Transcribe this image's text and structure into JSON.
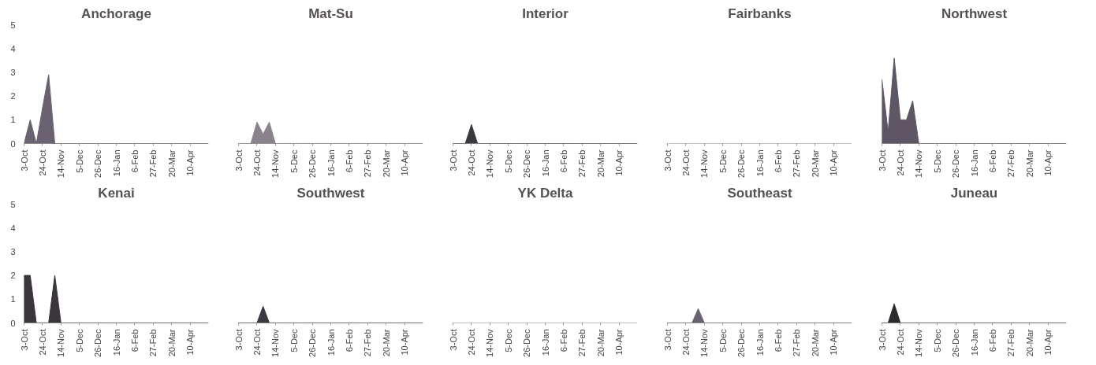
{
  "chart_data": [
    {
      "type": "area",
      "title": "Anchorage",
      "color": "#6a6270",
      "values": [
        0,
        1,
        0,
        1.5,
        2.9,
        0,
        0,
        0,
        0,
        0,
        0,
        0,
        0,
        0,
        0,
        0,
        0,
        0,
        0,
        0,
        0,
        0,
        0,
        0,
        0,
        0,
        0,
        0,
        0,
        0,
        0
      ],
      "categories": [
        "3-Oct",
        null,
        null,
        "24-Oct",
        null,
        null,
        "14-Nov",
        null,
        null,
        "5-Dec",
        null,
        null,
        "26-Dec",
        null,
        null,
        "16-Jan",
        null,
        null,
        "6-Feb",
        null,
        null,
        "27-Feb",
        null,
        null,
        "20-Mar",
        null,
        null,
        "10-Apr",
        null,
        null,
        null
      ],
      "ylim": [
        0,
        5
      ],
      "yticks": [
        0,
        1,
        2,
        3,
        4,
        5
      ]
    },
    {
      "type": "area",
      "title": "Mat-Su",
      "color": "#8a828c",
      "values": [
        0,
        0,
        0,
        0.9,
        0.4,
        0.9,
        0,
        0,
        0,
        0,
        0,
        0,
        0,
        0,
        0,
        0,
        0,
        0,
        0,
        0,
        0,
        0,
        0,
        0,
        0,
        0,
        0,
        0,
        0,
        0,
        0
      ],
      "categories": [
        "3-Oct",
        null,
        null,
        "24-Oct",
        null,
        null,
        "14-Nov",
        null,
        null,
        "5-Dec",
        null,
        null,
        "26-Dec",
        null,
        null,
        "16-Jan",
        null,
        null,
        "6-Feb",
        null,
        null,
        "27-Feb",
        null,
        null,
        "20-Mar",
        null,
        null,
        "10-Apr",
        null,
        null,
        null
      ],
      "ylim": [
        0,
        5
      ],
      "yticks": [
        0,
        1,
        2,
        3,
        4,
        5
      ],
      "tick_labels": "x"
    },
    {
      "type": "area",
      "title": "Interior",
      "color": "#3c3840",
      "values": [
        0,
        0,
        0,
        0.8,
        0,
        0,
        0,
        0,
        0,
        0,
        0,
        0,
        0,
        0,
        0,
        0,
        0,
        0,
        0,
        0,
        0,
        0,
        0,
        0,
        0,
        0,
        0,
        0,
        0,
        0,
        0
      ],
      "categories": [
        "3-Oct",
        null,
        null,
        "24-Oct",
        null,
        null,
        "14-Nov",
        null,
        null,
        "5-Dec",
        null,
        null,
        "26-Dec",
        null,
        null,
        "16-Jan",
        null,
        null,
        "6-Feb",
        null,
        null,
        "27-Feb",
        null,
        null,
        "20-Mar",
        null,
        null,
        "10-Apr",
        null,
        null,
        null
      ],
      "ylim": [
        0,
        5
      ],
      "yticks": [
        0,
        1,
        2,
        3,
        4,
        5
      ],
      "tick_labels": "x"
    },
    {
      "type": "area",
      "title": "Fairbanks",
      "values": [
        null,
        null,
        null,
        null,
        null,
        null,
        null,
        null,
        null,
        null,
        null,
        null,
        null,
        null,
        null,
        null,
        null,
        null,
        null,
        null,
        null,
        null,
        null,
        null,
        null,
        null,
        null,
        null,
        null,
        null,
        null
      ],
      "categories": [
        "3-Oct",
        null,
        null,
        "24-Oct",
        null,
        null,
        "14-Nov",
        null,
        null,
        "5-Dec",
        null,
        null,
        "26-Dec",
        null,
        null,
        "16-Jan",
        null,
        null,
        "6-Feb",
        null,
        null,
        "27-Feb",
        null,
        null,
        "20-Mar",
        null,
        null,
        "10-Apr",
        null,
        null,
        null
      ],
      "ylim": [
        0,
        5
      ],
      "yticks": [
        0,
        1,
        2,
        3,
        4,
        5
      ],
      "tick_labels": "x"
    },
    {
      "type": "area",
      "title": "Northwest",
      "color": "#5e5664",
      "values": [
        2.7,
        0.5,
        3.6,
        1,
        1,
        1.8,
        0,
        0,
        0,
        0,
        0,
        0,
        0,
        0,
        0,
        0,
        0,
        0,
        0,
        0,
        0,
        0,
        0,
        0,
        0,
        0,
        0,
        0,
        0,
        0,
        0
      ],
      "categories": [
        "3-Oct",
        null,
        null,
        "24-Oct",
        null,
        null,
        "14-Nov",
        null,
        null,
        "5-Dec",
        null,
        null,
        "26-Dec",
        null,
        null,
        "16-Jan",
        null,
        null,
        "6-Feb",
        null,
        null,
        "27-Feb",
        null,
        null,
        "20-Mar",
        null,
        null,
        "10-Apr",
        null,
        null,
        null
      ],
      "ylim": [
        0,
        5
      ],
      "yticks": [
        0,
        1,
        2,
        3,
        4,
        5
      ],
      "tick_labels": "x"
    },
    {
      "type": "area",
      "title": "Kenai",
      "color": "#3a363c",
      "values": [
        2,
        2,
        0,
        0,
        0,
        2,
        0,
        0,
        0,
        0,
        0,
        0,
        0,
        0,
        0,
        0,
        0,
        0,
        0,
        0,
        0,
        0,
        0,
        0,
        0,
        0,
        0,
        0,
        0,
        0,
        0
      ],
      "categories": [
        "3-Oct",
        null,
        null,
        "24-Oct",
        null,
        null,
        "14-Nov",
        null,
        null,
        "5-Dec",
        null,
        null,
        "26-Dec",
        null,
        null,
        "16-Jan",
        null,
        null,
        "6-Feb",
        null,
        null,
        "27-Feb",
        null,
        null,
        "20-Mar",
        null,
        null,
        "10-Apr",
        null,
        null,
        null
      ],
      "ylim": [
        0,
        5
      ],
      "yticks": [
        0,
        1,
        2,
        3,
        4,
        5
      ]
    },
    {
      "type": "area",
      "title": "Southwest",
      "color": "#3c3840",
      "values": [
        0,
        0,
        0,
        0,
        0.7,
        0,
        0,
        0,
        0,
        0,
        0,
        0,
        0,
        0,
        0,
        0,
        0,
        0,
        0,
        0,
        0,
        0,
        0,
        0,
        0,
        0,
        0,
        0,
        0,
        0,
        0
      ],
      "categories": [
        "3-Oct",
        null,
        null,
        "24-Oct",
        null,
        null,
        "14-Nov",
        null,
        null,
        "5-Dec",
        null,
        null,
        "26-Dec",
        null,
        null,
        "16-Jan",
        null,
        null,
        "6-Feb",
        null,
        null,
        "27-Feb",
        null,
        null,
        "20-Mar",
        null,
        null,
        "10-Apr",
        null,
        null,
        null
      ],
      "ylim": [
        0,
        5
      ],
      "yticks": [
        0,
        1,
        2,
        3,
        4,
        5
      ],
      "tick_labels": "x"
    },
    {
      "type": "area",
      "title": "YK Delta",
      "values": [
        null,
        null,
        null,
        null,
        null,
        null,
        null,
        null,
        null,
        null,
        null,
        null,
        null,
        null,
        null,
        null,
        null,
        null,
        null,
        null,
        null,
        null,
        null,
        null,
        null,
        null,
        null,
        null,
        null,
        null,
        null
      ],
      "categories": [
        "3-Oct",
        null,
        null,
        "24-Oct",
        null,
        null,
        "14-Nov",
        null,
        null,
        "5-Dec",
        null,
        null,
        "26-Dec",
        null,
        null,
        "16-Jan",
        null,
        null,
        "6-Feb",
        null,
        null,
        "27-Feb",
        null,
        null,
        "20-Mar",
        null,
        null,
        "10-Apr",
        null,
        null,
        null
      ],
      "ylim": [
        0,
        5
      ],
      "yticks": [
        0,
        1,
        2,
        3,
        4,
        5
      ],
      "tick_labels": "x"
    },
    {
      "type": "area",
      "title": "Southeast",
      "color": "#6a6270",
      "values": [
        0,
        0,
        0,
        0,
        0,
        0.6,
        0,
        0,
        0,
        0,
        0,
        0,
        0,
        0,
        0,
        0,
        0,
        0,
        0,
        0,
        0,
        0,
        0,
        0,
        0,
        0,
        0,
        0,
        0,
        0,
        0
      ],
      "categories": [
        "3-Oct",
        null,
        null,
        "24-Oct",
        null,
        null,
        "14-Nov",
        null,
        null,
        "5-Dec",
        null,
        null,
        "26-Dec",
        null,
        null,
        "16-Jan",
        null,
        null,
        "6-Feb",
        null,
        null,
        "27-Feb",
        null,
        null,
        "20-Mar",
        null,
        null,
        "10-Apr",
        null,
        null,
        null
      ],
      "ylim": [
        0,
        5
      ],
      "yticks": [
        0,
        1,
        2,
        3,
        4,
        5
      ],
      "tick_labels": "x"
    },
    {
      "type": "area",
      "title": "Juneau",
      "color": "#2e2a30",
      "values": [
        0,
        0,
        0.8,
        0,
        0,
        0,
        0,
        0,
        0,
        0,
        0,
        0,
        0,
        0,
        0,
        0,
        0,
        0,
        0,
        0,
        0,
        0,
        0,
        0,
        0,
        0,
        0,
        0,
        0,
        0,
        0
      ],
      "categories": [
        "3-Oct",
        null,
        null,
        "24-Oct",
        null,
        null,
        "14-Nov",
        null,
        null,
        "5-Dec",
        null,
        null,
        "26-Dec",
        null,
        null,
        "16-Jan",
        null,
        null,
        "6-Feb",
        null,
        null,
        "27-Feb",
        null,
        null,
        "20-Mar",
        null,
        null,
        "10-Apr",
        null,
        null,
        null
      ],
      "ylim": [
        0,
        5
      ],
      "yticks": [
        0,
        1,
        2,
        3,
        4,
        5
      ],
      "tick_labels": "x"
    }
  ]
}
